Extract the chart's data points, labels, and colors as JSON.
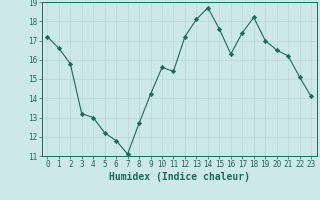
{
  "x": [
    0,
    1,
    2,
    3,
    4,
    5,
    6,
    7,
    8,
    9,
    10,
    11,
    12,
    13,
    14,
    15,
    16,
    17,
    18,
    19,
    20,
    21,
    22,
    23
  ],
  "y": [
    17.2,
    16.6,
    15.8,
    13.2,
    13.0,
    12.2,
    11.8,
    11.1,
    12.7,
    14.2,
    15.6,
    15.4,
    17.2,
    18.1,
    18.7,
    17.6,
    16.3,
    17.4,
    18.2,
    17.0,
    16.5,
    16.2,
    15.1,
    14.1
  ],
  "ylim": [
    11,
    19
  ],
  "yticks": [
    11,
    12,
    13,
    14,
    15,
    16,
    17,
    18,
    19
  ],
  "xticks": [
    0,
    1,
    2,
    3,
    4,
    5,
    6,
    7,
    8,
    9,
    10,
    11,
    12,
    13,
    14,
    15,
    16,
    17,
    18,
    19,
    20,
    21,
    22,
    23
  ],
  "xlabel": "Humidex (Indice chaleur)",
  "line_color": "#1a6b5a",
  "marker": "D",
  "marker_size": 2.2,
  "bg_color": "#cce8ea",
  "grid_color": "#b8d8da",
  "axes_color": "#1a6b5a",
  "tick_label_fontsize": 5.5,
  "xlabel_fontsize": 7.0
}
